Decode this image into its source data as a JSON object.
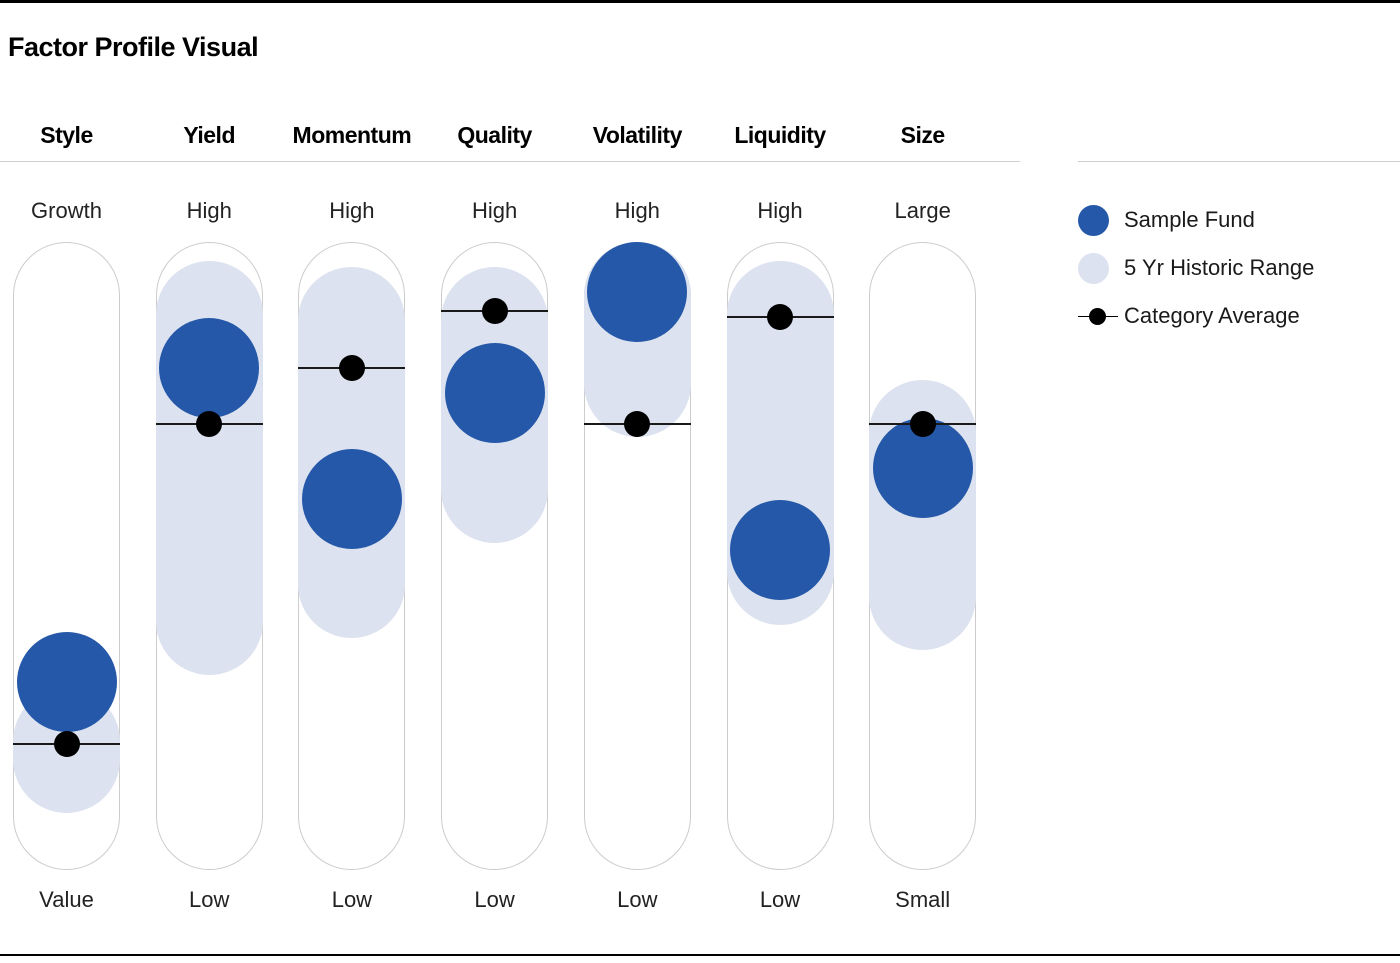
{
  "title": "Factor Profile Visual",
  "legend": {
    "items": [
      {
        "label": "Sample Fund",
        "swatch": "fund-circle-swatch",
        "color": "#2558A8"
      },
      {
        "label": "5 Yr Historic Range",
        "swatch": "range-circle-swatch",
        "color": "#DCE2EF"
      },
      {
        "label": "Category Average",
        "swatch": "dot-on-line-swatch",
        "color": "#000000"
      }
    ]
  },
  "chart_data": {
    "type": "factor-profile",
    "title": "Factor Profile Visual",
    "scale": {
      "min": 0,
      "max": 100,
      "note": "0 = bottom pole label, 100 = top pole label of each pill"
    },
    "series_labels": {
      "fund": "Sample Fund",
      "range": "5 Yr Historic Range",
      "category_average": "Category Average"
    },
    "factors": [
      {
        "name": "Style",
        "top_label": "Growth",
        "bottom_label": "Value",
        "fund": 30,
        "category_average": 20,
        "range": [
          9,
          29
        ]
      },
      {
        "name": "Yield",
        "top_label": "High",
        "bottom_label": "Low",
        "fund": 80,
        "category_average": 71,
        "range": [
          31,
          97
        ]
      },
      {
        "name": "Momentum",
        "top_label": "High",
        "bottom_label": "Low",
        "fund": 59,
        "category_average": 80,
        "range": [
          37,
          96
        ]
      },
      {
        "name": "Quality",
        "top_label": "High",
        "bottom_label": "Low",
        "fund": 76,
        "category_average": 89,
        "range": [
          52,
          96
        ]
      },
      {
        "name": "Volatility",
        "top_label": "High",
        "bottom_label": "Low",
        "fund": 92,
        "category_average": 71,
        "range": [
          69,
          100
        ]
      },
      {
        "name": "Liquidity",
        "top_label": "High",
        "bottom_label": "Low",
        "fund": 51,
        "category_average": 88,
        "range": [
          39,
          97
        ]
      },
      {
        "name": "Size",
        "top_label": "Large",
        "bottom_label": "Small",
        "fund": 64,
        "category_average": 71,
        "range": [
          35,
          78
        ]
      }
    ]
  },
  "colors": {
    "fund": "#2558A8",
    "range": "#DCE2EF",
    "category_average": "#000000",
    "pill_border": "#CCCCCC",
    "separator": "#CFCFCF",
    "page_border": "#000000"
  }
}
